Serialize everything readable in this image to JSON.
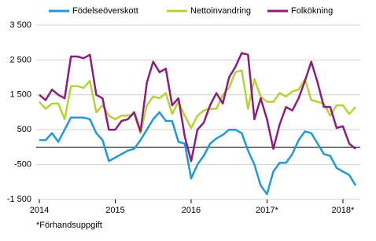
{
  "chart_data": {
    "type": "line",
    "categories": [
      "2014",
      null,
      null,
      null,
      null,
      null,
      null,
      null,
      null,
      null,
      null,
      null,
      "2015",
      null,
      null,
      null,
      null,
      null,
      null,
      null,
      null,
      null,
      null,
      null,
      "2016",
      null,
      null,
      null,
      null,
      null,
      null,
      null,
      null,
      null,
      null,
      null,
      "2017*",
      null,
      null,
      null,
      null,
      null,
      null,
      null,
      null,
      null,
      null,
      null,
      "2018*",
      null,
      null
    ],
    "series": [
      {
        "name": "Födelseöverskott",
        "color": "#1f9ad6",
        "values": [
          200,
          200,
          400,
          150,
          500,
          850,
          850,
          850,
          800,
          400,
          200,
          -400,
          -300,
          -200,
          -100,
          -50,
          200,
          500,
          800,
          1000,
          750,
          750,
          150,
          100,
          -900,
          -500,
          -250,
          100,
          250,
          350,
          500,
          500,
          400,
          -100,
          -500,
          -1100,
          -1350,
          -700,
          -450,
          -450,
          -200,
          200,
          450,
          400,
          100,
          -200,
          -250,
          -600,
          -700,
          -800,
          -1100
        ]
      },
      {
        "name": "Nettoinvandring",
        "color": "#b5d334",
        "values": [
          1300,
          1100,
          1250,
          1250,
          800,
          1750,
          1750,
          1700,
          1900,
          1000,
          1200,
          900,
          800,
          900,
          900,
          950,
          400,
          1200,
          1450,
          1400,
          1550,
          950,
          1300,
          900,
          550,
          900,
          1050,
          1100,
          1100,
          1500,
          1700,
          2150,
          2200,
          1100,
          1950,
          1450,
          1300,
          1300,
          1550,
          1450,
          1600,
          1650,
          1950,
          1350,
          1300,
          1250,
          900,
          1200,
          1200,
          950,
          1150
        ]
      },
      {
        "name": "Folkökning",
        "color": "#8c1c80",
        "values": [
          1500,
          1350,
          1650,
          1500,
          1400,
          2600,
          2600,
          2550,
          2650,
          1500,
          1400,
          500,
          500,
          750,
          800,
          1000,
          450,
          1850,
          2450,
          2150,
          2250,
          1200,
          1400,
          300,
          -400,
          500,
          700,
          1200,
          1550,
          1250,
          2000,
          2300,
          2700,
          2650,
          800,
          1400,
          800,
          -50,
          650,
          1150,
          1050,
          1400,
          1900,
          2450,
          1850,
          1150,
          1150,
          550,
          600,
          100,
          -50
        ]
      }
    ],
    "ylim": [
      -1500,
      3500
    ],
    "yticks": [
      {
        "value": 3500,
        "label": "3 500"
      },
      {
        "value": 2500,
        "label": "2 500"
      },
      {
        "value": 1500,
        "label": "1 500"
      },
      500,
      -500,
      {
        "value": -1500,
        "label": "-1 500"
      }
    ],
    "grid": true,
    "legend": "top",
    "footnote": "*Förhandsuppgift"
  }
}
